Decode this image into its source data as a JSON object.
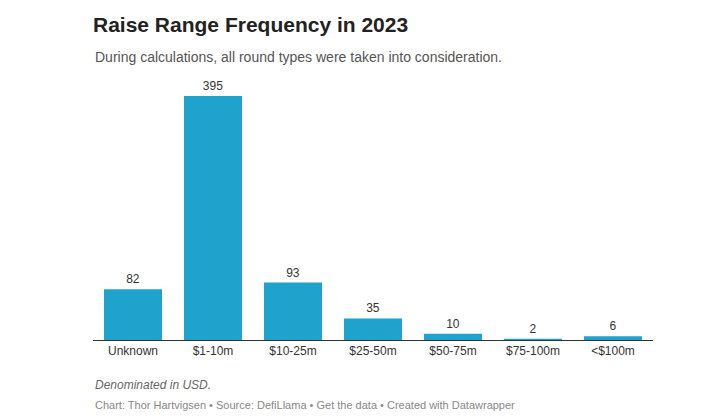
{
  "chart_data": {
    "type": "bar",
    "title": "Raise Range Frequency in 2023",
    "subtitle": "During calculations, all round types were taken into consideration.",
    "categories": [
      "Unknown",
      "$1-10m",
      "$10-25m",
      "$25-50m",
      "$50-75m",
      "$75-100m",
      "<$100m"
    ],
    "values": [
      82,
      395,
      93,
      35,
      10,
      2,
      6
    ],
    "color": "#1fa3cc",
    "ylim": [
      0,
      395
    ],
    "grid": false,
    "data_labels": true,
    "tick_labels": "x",
    "annotations": [
      "Denominated in USD.",
      "Chart: Thor Hartvigsen • Source: DefiLlama • Get the data • Created with Datawrapper"
    ]
  }
}
